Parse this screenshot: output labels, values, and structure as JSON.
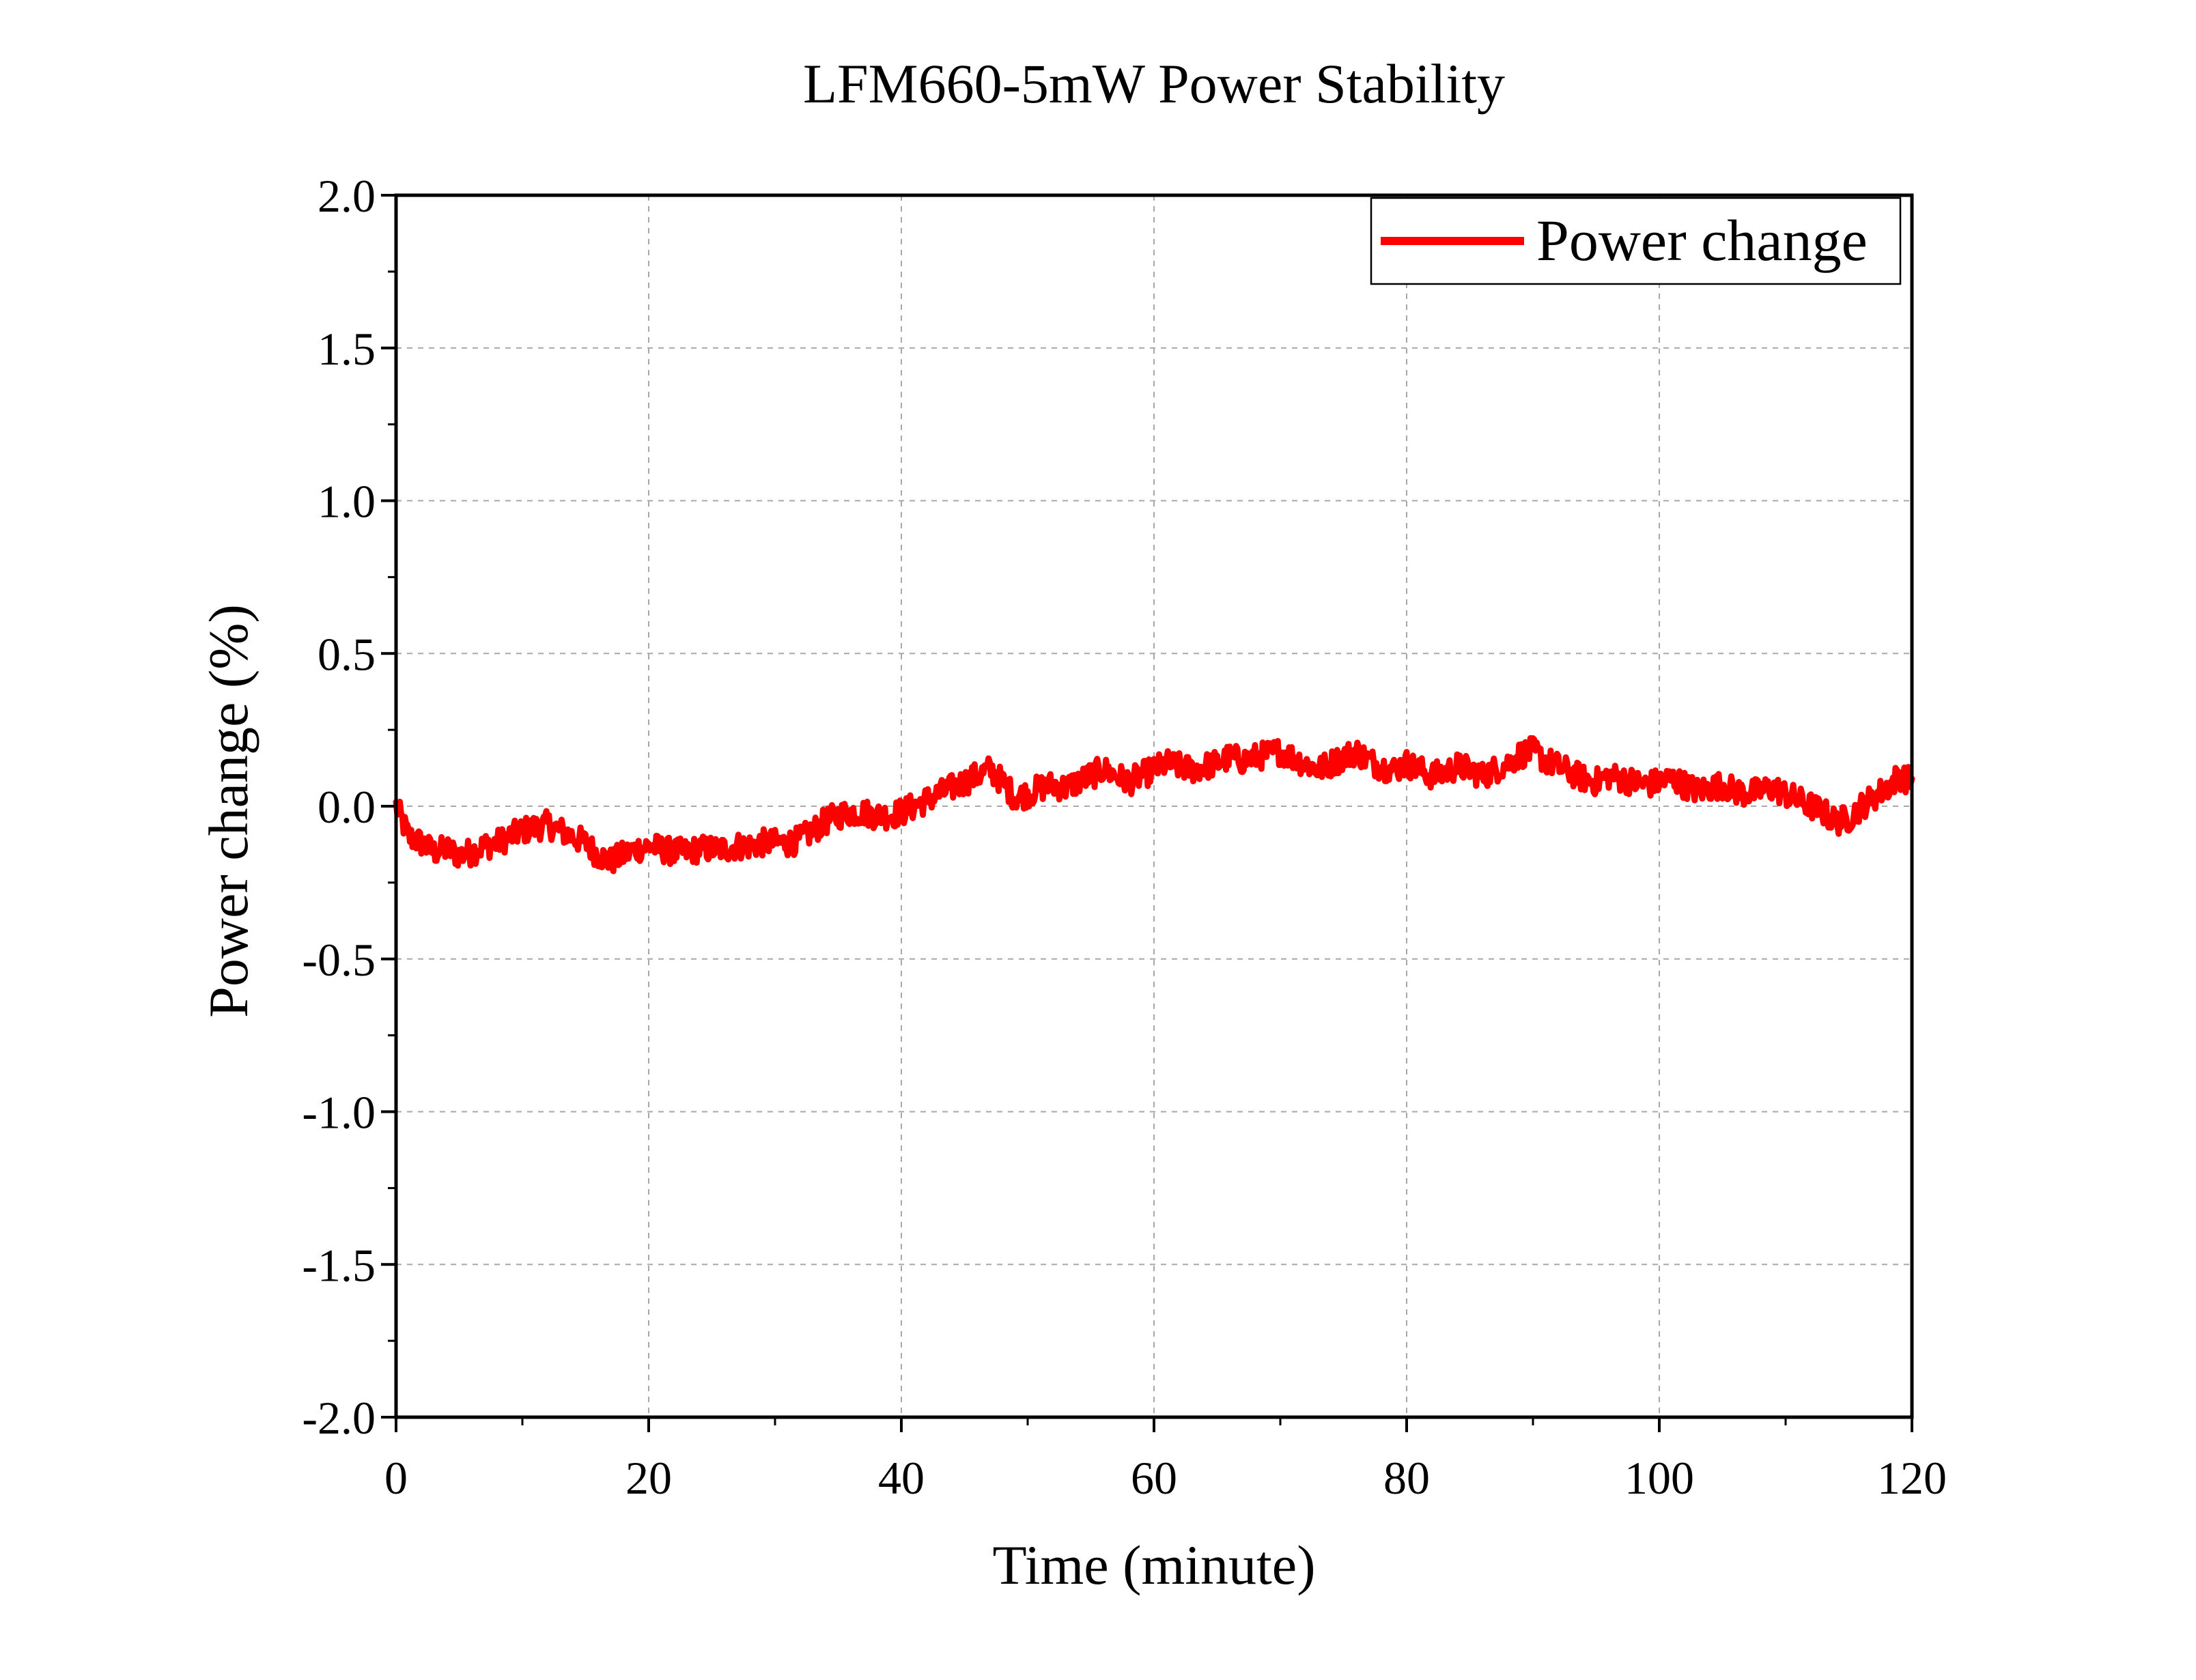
{
  "chart_data": {
    "type": "line",
    "title": "LFM660-5mW Power Stability",
    "xlabel": "Time (minute)",
    "ylabel": "Power change (%)",
    "xlim": [
      0,
      120
    ],
    "ylim": [
      -2.0,
      2.0
    ],
    "x_ticks": [
      0,
      20,
      40,
      60,
      80,
      100,
      120
    ],
    "x_tick_labels": [
      "0",
      "20",
      "40",
      "60",
      "80",
      "100",
      "120"
    ],
    "y_ticks": [
      -2.0,
      -1.5,
      -1.0,
      -0.5,
      0.0,
      0.5,
      1.0,
      1.5,
      2.0
    ],
    "y_tick_labels": [
      "-2.0",
      "-1.5",
      "-1.0",
      "-0.5",
      "0.0",
      "0.5",
      "1.0",
      "1.5",
      "2.0"
    ],
    "grid": true,
    "legend": {
      "placement": "top-right",
      "entries": [
        "Power change"
      ]
    },
    "series": [
      {
        "name": "Power change",
        "color": "#ff0000",
        "x": [
          0,
          1,
          2,
          3,
          4,
          5,
          6,
          7,
          8,
          9,
          10,
          11,
          12,
          13,
          14,
          15,
          16,
          17,
          18,
          19,
          20,
          21,
          22,
          23,
          24,
          25,
          26,
          27,
          28,
          29,
          30,
          31,
          32,
          33,
          34,
          35,
          36,
          37,
          38,
          39,
          40,
          41,
          42,
          43,
          44,
          45,
          46,
          47,
          48,
          49,
          50,
          51,
          52,
          53,
          54,
          55,
          56,
          57,
          58,
          59,
          60,
          61,
          62,
          63,
          64,
          65,
          66,
          67,
          68,
          69,
          70,
          71,
          72,
          73,
          74,
          75,
          76,
          77,
          78,
          79,
          80,
          81,
          82,
          83,
          84,
          85,
          86,
          87,
          88,
          89,
          90,
          91,
          92,
          93,
          94,
          95,
          96,
          97,
          98,
          99,
          100,
          101,
          102,
          103,
          104,
          105,
          106,
          107,
          108,
          109,
          110,
          111,
          112,
          113,
          114,
          115,
          116,
          117,
          118,
          119,
          120
        ],
        "y": [
          0.0,
          -0.1,
          -0.12,
          -0.15,
          -0.14,
          -0.16,
          -0.15,
          -0.13,
          -0.12,
          -0.1,
          -0.08,
          -0.07,
          -0.06,
          -0.08,
          -0.1,
          -0.12,
          -0.16,
          -0.18,
          -0.16,
          -0.14,
          -0.13,
          -0.14,
          -0.15,
          -0.15,
          -0.14,
          -0.14,
          -0.14,
          -0.13,
          -0.13,
          -0.12,
          -0.12,
          -0.12,
          -0.11,
          -0.08,
          -0.05,
          -0.03,
          -0.02,
          -0.02,
          -0.03,
          -0.03,
          -0.02,
          0.0,
          0.02,
          0.04,
          0.06,
          0.08,
          0.1,
          0.12,
          0.08,
          0.03,
          0.04,
          0.06,
          0.07,
          0.06,
          0.08,
          0.1,
          0.12,
          0.1,
          0.08,
          0.1,
          0.12,
          0.14,
          0.13,
          0.12,
          0.13,
          0.14,
          0.16,
          0.15,
          0.16,
          0.17,
          0.18,
          0.16,
          0.14,
          0.12,
          0.14,
          0.16,
          0.18,
          0.15,
          0.13,
          0.12,
          0.14,
          0.12,
          0.1,
          0.11,
          0.13,
          0.12,
          0.1,
          0.12,
          0.14,
          0.17,
          0.18,
          0.15,
          0.13,
          0.11,
          0.09,
          0.08,
          0.1,
          0.09,
          0.08,
          0.07,
          0.08,
          0.09,
          0.07,
          0.05,
          0.06,
          0.07,
          0.05,
          0.04,
          0.05,
          0.06,
          0.04,
          0.02,
          0.0,
          -0.02,
          -0.05,
          -0.04,
          0.0,
          0.03,
          0.06,
          0.1,
          0.08
        ]
      }
    ]
  }
}
